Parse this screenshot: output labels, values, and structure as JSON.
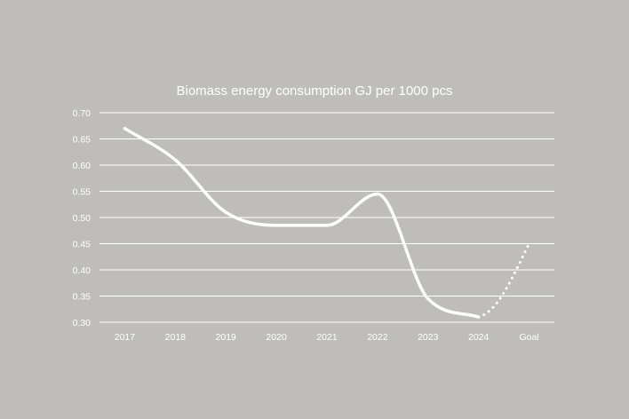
{
  "colors": {
    "background": "#bfbdba",
    "line": "#ffffff",
    "grid": "#ffffff",
    "text": "#ffffff"
  },
  "chart_data": {
    "type": "line",
    "title": "Biomass energy consumption GJ per 1000 pcs",
    "xlabel": "",
    "ylabel": "",
    "categories": [
      "2017",
      "2018",
      "2019",
      "2020",
      "2021",
      "2022",
      "2023",
      "2024",
      "Goal"
    ],
    "yticks": [
      "0.30",
      "0.35",
      "0.40",
      "0.45",
      "0.50",
      "0.55",
      "0.60",
      "0.65",
      "0.70"
    ],
    "ylim": [
      0.3,
      0.7
    ],
    "grid": true,
    "legend": "none",
    "series": [
      {
        "name": "Actual",
        "style": "solid",
        "x": [
          "2017",
          "2018",
          "2019",
          "2020",
          "2021",
          "2022",
          "2023",
          "2024"
        ],
        "values": [
          0.67,
          0.61,
          0.51,
          0.485,
          0.485,
          0.545,
          0.345,
          0.31
        ]
      },
      {
        "name": "Goal",
        "style": "dotted",
        "x": [
          "2024",
          "Goal"
        ],
        "values": [
          0.31,
          0.45
        ]
      }
    ]
  }
}
